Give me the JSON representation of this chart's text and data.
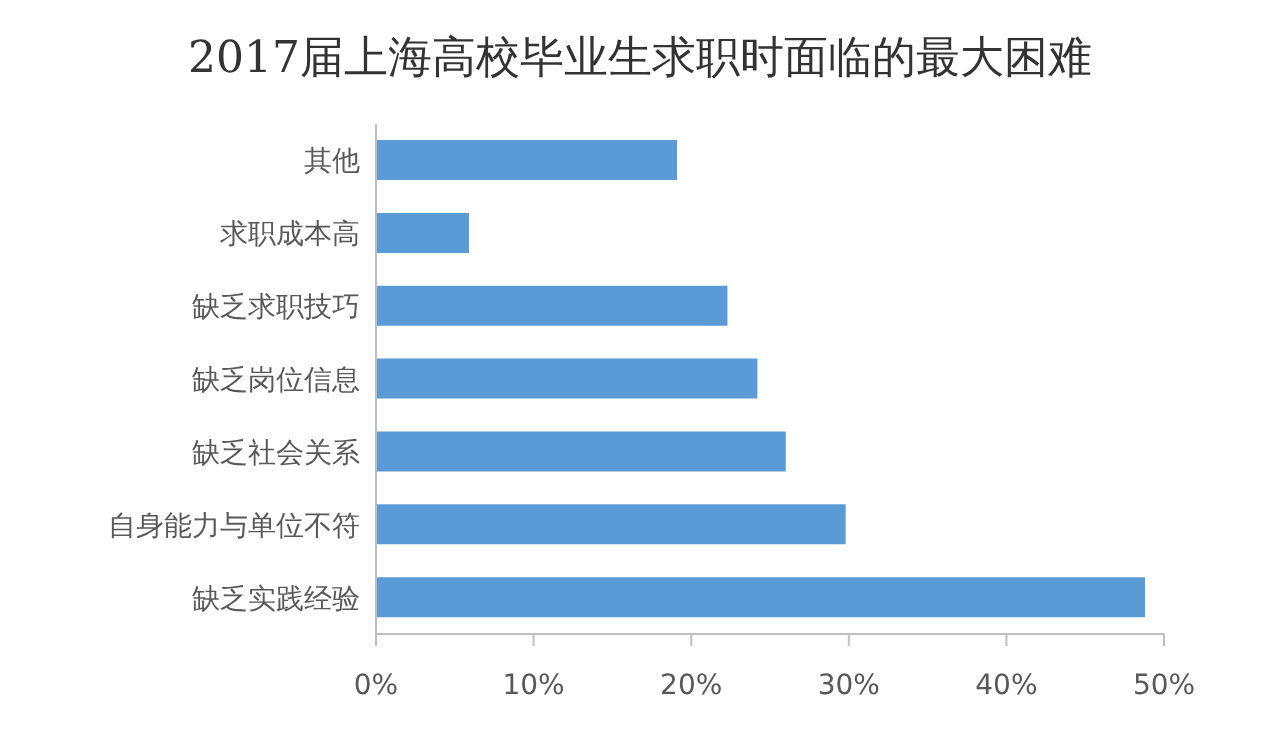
{
  "chart_data": {
    "type": "bar",
    "orientation": "horizontal",
    "title": "2017届上海高校毕业生求职时面临的最大困难",
    "categories": [
      "其他",
      "求职成本高",
      "缺乏求职技巧",
      "缺乏岗位信息",
      "缺乏社会关系",
      "自身能力与单位不符",
      "缺乏实践经验"
    ],
    "values": [
      19.1,
      5.9,
      22.3,
      24.2,
      26.0,
      29.8,
      48.8
    ],
    "color": "#5b9bd5",
    "xlim": [
      0,
      50
    ],
    "xticks": [
      {
        "value": 0,
        "label": "0%"
      },
      {
        "value": 10,
        "label": "10%"
      },
      {
        "value": 20,
        "label": "20%"
      },
      {
        "value": 30,
        "label": "30%"
      },
      {
        "value": 40,
        "label": "40%"
      },
      {
        "value": 50,
        "label": "50%"
      }
    ],
    "grid": false
  }
}
